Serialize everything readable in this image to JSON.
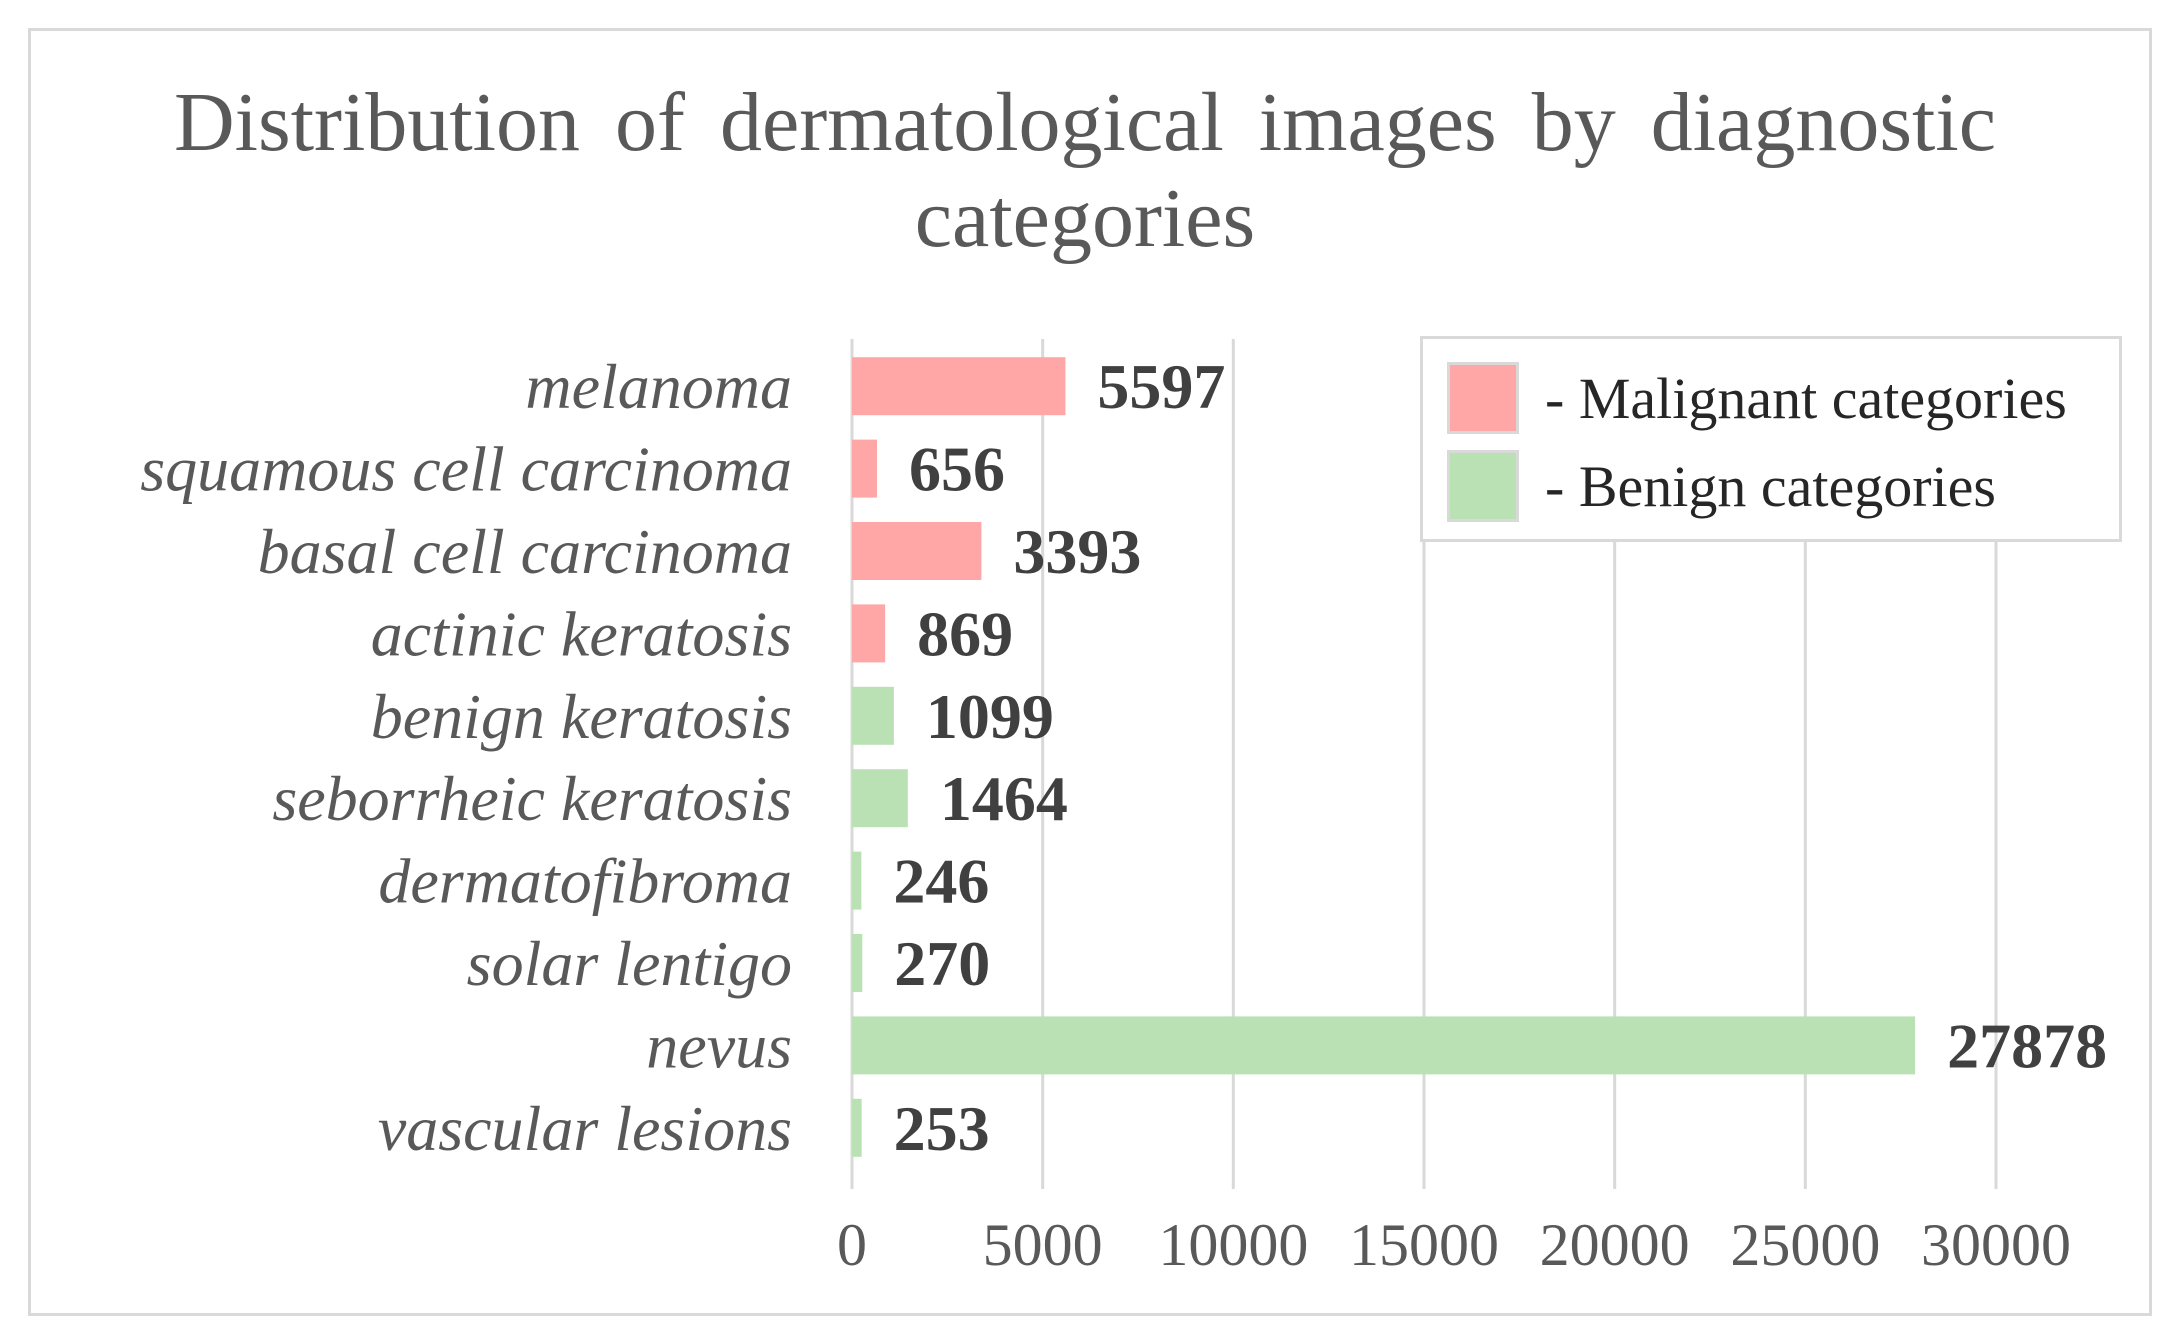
{
  "chart_data": {
    "type": "bar",
    "orientation": "horizontal",
    "title": "Distribution of dermatological images by diagnostic categories",
    "categories": [
      "melanoma",
      "squamous cell carcinoma",
      "basal cell carcinoma",
      "actinic keratosis",
      "benign keratosis",
      "seborrheic keratosis",
      "dermatofibroma",
      "solar lentigo",
      "nevus",
      "vascular lesions"
    ],
    "values": [
      5597,
      656,
      3393,
      869,
      1099,
      1464,
      246,
      270,
      27878,
      253
    ],
    "groups": [
      "malignant",
      "malignant",
      "malignant",
      "malignant",
      "benign",
      "benign",
      "benign",
      "benign",
      "benign",
      "benign"
    ],
    "xlim": [
      0,
      30000
    ],
    "x_ticks": [
      0,
      5000,
      10000,
      15000,
      20000,
      25000,
      30000
    ],
    "grid": "vertical",
    "data_labels": true,
    "legend": {
      "placement": "top-right",
      "entries": [
        {
          "label": "- Malignant categories",
          "color": "#ffa7a7"
        },
        {
          "label": "- Benign categories",
          "color": "#b9e1b3"
        }
      ]
    },
    "colors": {
      "malignant": "#ffa7a7",
      "benign": "#b9e1b3",
      "grid": "#d9d9d9"
    }
  }
}
